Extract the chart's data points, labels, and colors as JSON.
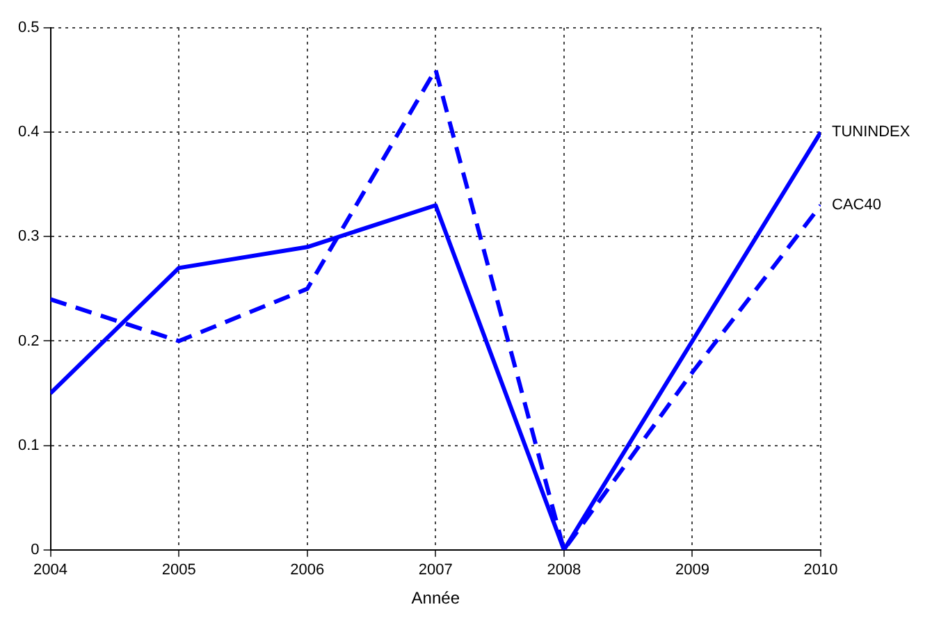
{
  "chart_data": {
    "type": "line",
    "xlabel": "Année",
    "x": [
      2004,
      2005,
      2006,
      2007,
      2008,
      2009,
      2010
    ],
    "xlim": [
      2004,
      2010
    ],
    "xticks": [
      2004,
      2005,
      2006,
      2007,
      2008,
      2009,
      2010
    ],
    "ylim": [
      0,
      0.5
    ],
    "yticks": [
      0,
      0.1,
      0.2,
      0.3,
      0.4,
      0.5
    ],
    "grid": true,
    "legend": false,
    "series": [
      {
        "name": "CAC40",
        "color": "#0000ff",
        "line_style": "dashed",
        "values": [
          0.24,
          0.2,
          0.25,
          0.46,
          0.0,
          0.17,
          0.33
        ]
      },
      {
        "name": "TUNINDEX",
        "color": "#0000ff",
        "line_style": "solid",
        "values": [
          0.15,
          0.27,
          0.29,
          0.33,
          0.0,
          0.2,
          0.4
        ]
      }
    ]
  }
}
